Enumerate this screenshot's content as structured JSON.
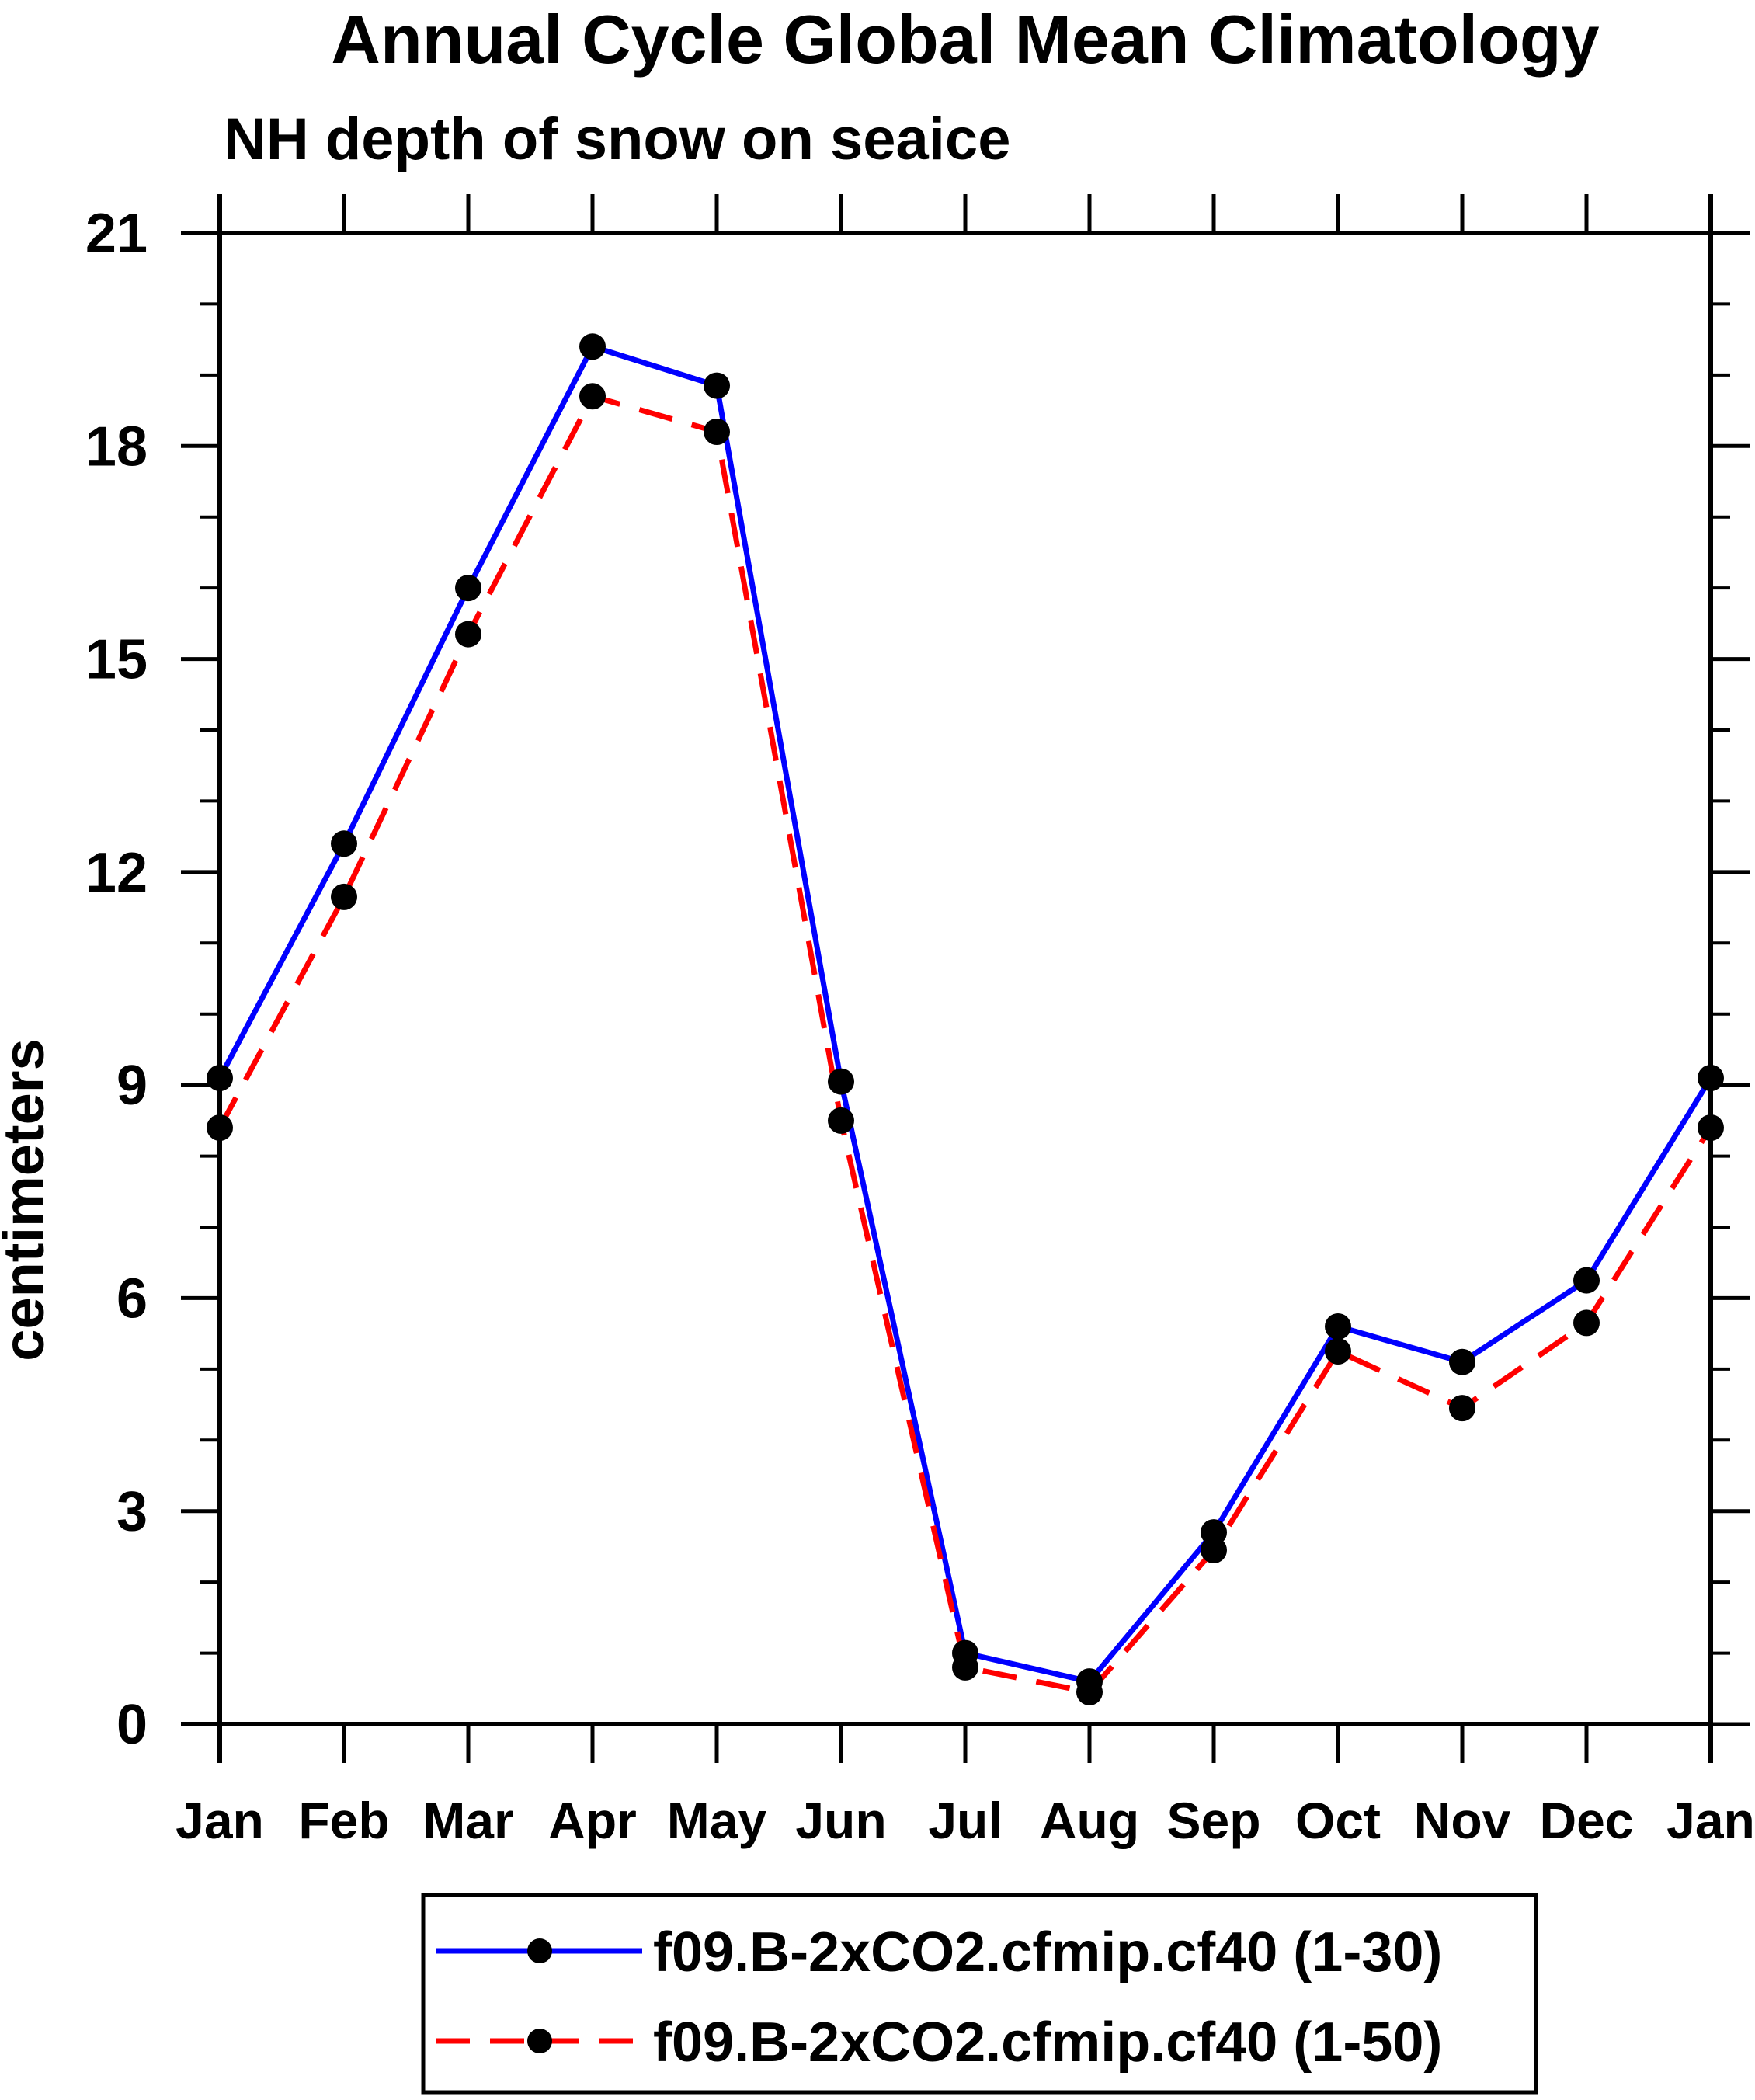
{
  "title": "Annual Cycle Global Mean Climatology",
  "subtitle": "NH depth of snow on seaice",
  "chart_data": {
    "type": "line",
    "title": "Annual Cycle Global Mean Climatology",
    "subtitle": "NH depth of snow on seaice",
    "xlabel": "",
    "ylabel": "centimeters",
    "categories": [
      "Jan",
      "Feb",
      "Mar",
      "Apr",
      "May",
      "Jun",
      "Jul",
      "Aug",
      "Sep",
      "Oct",
      "Nov",
      "Dec",
      "Jan"
    ],
    "ylim": [
      0,
      21
    ],
    "ytick_step": 3,
    "yticks_labeled": [
      21,
      18,
      15,
      12,
      9,
      6,
      3,
      0
    ],
    "minor_tick_step": 1,
    "grid": false,
    "legend_position": "bottom",
    "axis_color": "#000000",
    "series": [
      {
        "name": "f09.B-2xCO2.cfmip.cf40 (1-30)",
        "color": "#0000ff",
        "line_style": "solid",
        "marker": "circle",
        "marker_color": "#000000",
        "values": [
          9.1,
          12.4,
          16.0,
          19.4,
          18.85,
          9.05,
          1.0,
          0.6,
          2.7,
          5.6,
          5.1,
          6.25,
          9.1
        ]
      },
      {
        "name": "f09.B-2xCO2.cfmip.cf40 (1-50)",
        "color": "#ff0000",
        "line_style": "dashed",
        "marker": "circle",
        "marker_color": "#000000",
        "values": [
          8.4,
          11.65,
          15.35,
          18.7,
          18.2,
          8.5,
          0.8,
          0.45,
          2.45,
          5.25,
          4.45,
          5.65,
          8.4
        ]
      }
    ]
  }
}
